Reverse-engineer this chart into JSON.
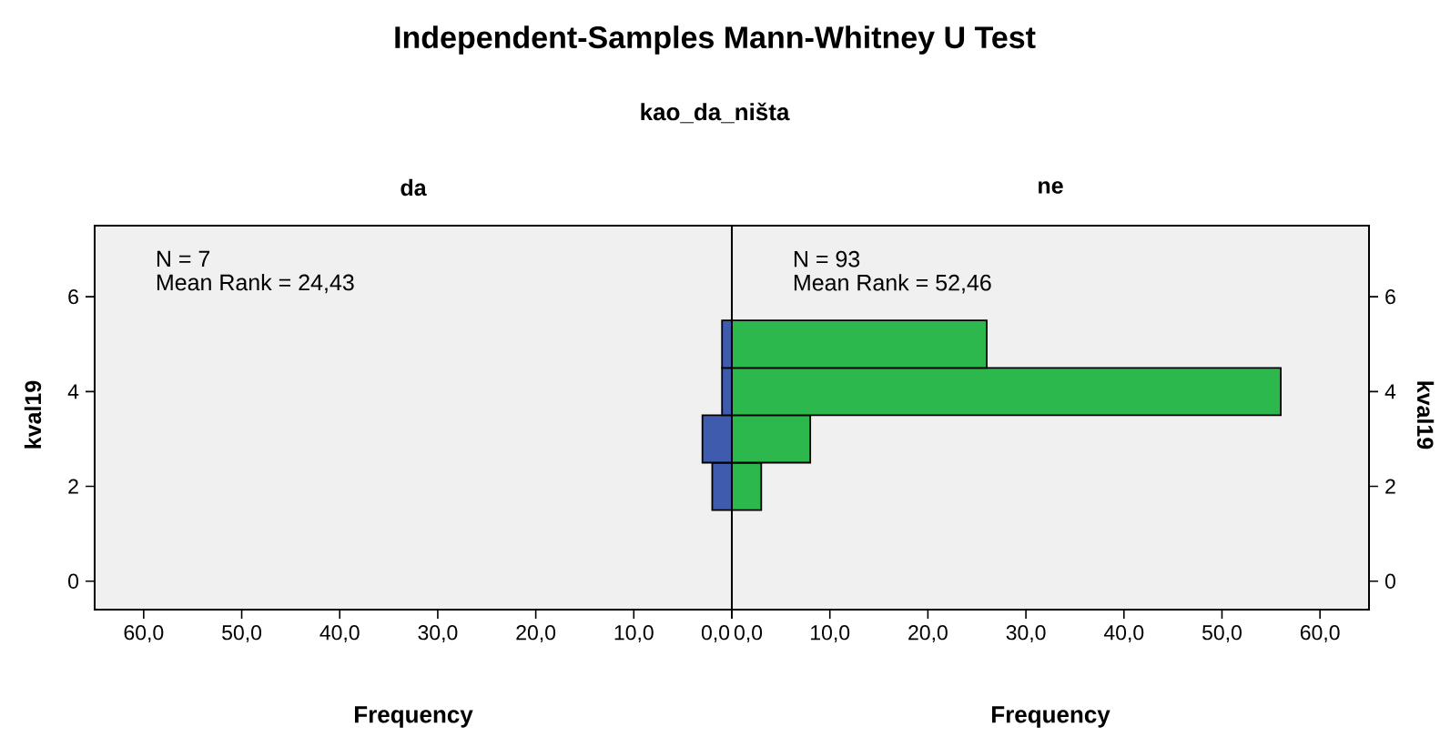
{
  "chart_data": [
    {
      "type": "histogram",
      "orientation": "horizontal",
      "title": "Independent-Samples Mann-Whitney U Test",
      "subtitle": "kao_da_ništa",
      "annotations": [
        "da",
        "N = 7",
        "Mean Rank = 24,43"
      ],
      "xlabel": "Frequency",
      "ylabel": "kval19",
      "color": "#3e5bad",
      "bins": [
        1.5,
        2.5,
        3.5,
        4.5,
        5.5
      ],
      "values": [
        2,
        3,
        1,
        1
      ],
      "xlim": [
        65,
        0
      ],
      "xticks": [
        {
          "value": 60,
          "label": "60,0"
        },
        {
          "value": 50,
          "label": "50,0"
        },
        {
          "value": 40,
          "label": "40,0"
        },
        {
          "value": 30,
          "label": "30,0"
        },
        {
          "value": 20,
          "label": "20,0"
        },
        {
          "value": 10,
          "label": "10,0"
        },
        {
          "value": 0,
          "label": "0,0"
        }
      ],
      "ylim": [
        -0.6,
        7.5
      ],
      "yticks": [
        0,
        2,
        4,
        6
      ]
    },
    {
      "type": "histogram",
      "orientation": "horizontal",
      "annotations": [
        "ne",
        "N = 93",
        "Mean Rank = 52,46"
      ],
      "xlabel": "Frequency",
      "ylabel": "kval19",
      "color": "#2db84d",
      "bins": [
        1.5,
        2.5,
        3.5,
        4.5,
        5.5
      ],
      "values": [
        3,
        8,
        56,
        26
      ],
      "xlim": [
        0,
        65
      ],
      "xticks": [
        {
          "value": 0,
          "label": "0,0"
        },
        {
          "value": 10,
          "label": "10,0"
        },
        {
          "value": 20,
          "label": "20,0"
        },
        {
          "value": 30,
          "label": "30,0"
        },
        {
          "value": 40,
          "label": "40,0"
        },
        {
          "value": 50,
          "label": "50,0"
        },
        {
          "value": 60,
          "label": "60,0"
        }
      ],
      "ylim": [
        -0.6,
        7.5
      ],
      "yticks": [
        0,
        2,
        4,
        6
      ]
    }
  ]
}
